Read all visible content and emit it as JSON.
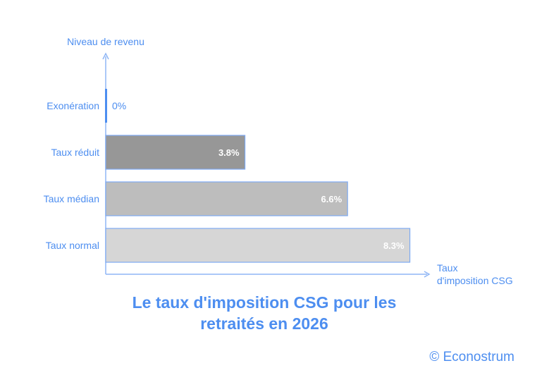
{
  "chart_data": {
    "type": "bar",
    "orientation": "horizontal",
    "title": "Le taux d'imposition CSG pour les retraités en 2026",
    "xlabel": "Taux d'imposition CSG",
    "ylabel": "Niveau de revenu",
    "categories": [
      "Exonération",
      "Taux réduit",
      "Taux médian",
      "Taux normal"
    ],
    "values": [
      0,
      3.8,
      6.6,
      8.3
    ],
    "value_labels": [
      "0%",
      "3.8%",
      "6.6%",
      "8.3%"
    ],
    "colors": [
      "#4d8ef0",
      "#979797",
      "#bdbdbd",
      "#d6d6d6"
    ],
    "axis_color": "#8fb6f5",
    "grid": false,
    "legend": "none"
  },
  "credit": "© Econostrum"
}
